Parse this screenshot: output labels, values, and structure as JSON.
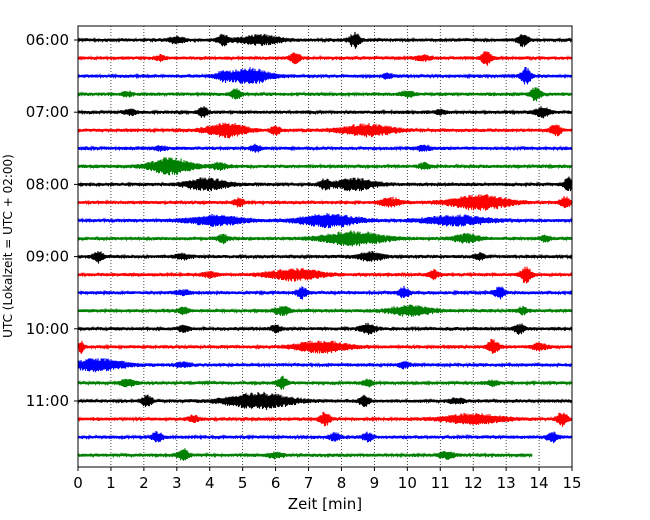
{
  "chart_data": {
    "type": "line",
    "title": "",
    "xlabel": "Zeit  [min]",
    "ylabel": "UTC (Lokalzeit = UTC + 02:00)",
    "xlim": [
      0,
      15
    ],
    "x_ticks": [
      "0",
      "1",
      "2",
      "3",
      "4",
      "5",
      "6",
      "7",
      "8",
      "9",
      "10",
      "11",
      "12",
      "13",
      "14",
      "15"
    ],
    "y_ticks": [
      "06:00",
      "07:00",
      "08:00",
      "09:00",
      "10:00",
      "11:00"
    ],
    "trace_interval_min": 15,
    "first_trace_time": "06:00",
    "grid": "vertical dotted at each minute",
    "trace_colors": [
      "#000000",
      "#ff0000",
      "#0000ff",
      "#008000"
    ],
    "series": [
      {
        "start": "06:00",
        "color": "#000000",
        "x_end": 15,
        "bursts": [
          [
            5.5,
            0.8,
            0.6
          ],
          [
            8.4,
            0.2,
            0.9
          ],
          [
            13.5,
            0.2,
            0.7
          ],
          [
            4.4,
            0.2,
            0.6
          ],
          [
            3,
            0.3,
            0.4
          ]
        ]
      },
      {
        "start": "06:15",
        "color": "#ff0000",
        "x_end": 15,
        "bursts": [
          [
            6.6,
            0.2,
            0.6
          ],
          [
            12.4,
            0.2,
            0.8
          ],
          [
            2.5,
            0.2,
            0.3
          ],
          [
            10.5,
            0.3,
            0.3
          ]
        ]
      },
      {
        "start": "06:30",
        "color": "#0000ff",
        "x_end": 15,
        "bursts": [
          [
            5.2,
            0.8,
            0.9
          ],
          [
            13.6,
            0.2,
            1.0
          ],
          [
            4.4,
            0.3,
            0.4
          ],
          [
            9.4,
            0.2,
            0.3
          ]
        ]
      },
      {
        "start": "06:45",
        "color": "#008000",
        "x_end": 15,
        "bursts": [
          [
            4.8,
            0.2,
            0.6
          ],
          [
            13.9,
            0.2,
            0.8
          ],
          [
            1.5,
            0.2,
            0.3
          ],
          [
            10,
            0.3,
            0.3
          ]
        ]
      },
      {
        "start": "07:00",
        "color": "#000000",
        "x_end": 15,
        "bursts": [
          [
            3.8,
            0.2,
            0.6
          ],
          [
            14.1,
            0.3,
            0.6
          ],
          [
            1.6,
            0.2,
            0.4
          ],
          [
            11,
            0.2,
            0.3
          ]
        ]
      },
      {
        "start": "07:15",
        "color": "#ff0000",
        "x_end": 15,
        "bursts": [
          [
            4.5,
            0.8,
            0.8
          ],
          [
            8.8,
            1.0,
            0.7
          ],
          [
            6,
            0.2,
            0.5
          ],
          [
            14.5,
            0.2,
            0.7
          ]
        ]
      },
      {
        "start": "07:30",
        "color": "#0000ff",
        "x_end": 15,
        "bursts": [
          [
            5.4,
            0.2,
            0.4
          ],
          [
            10.5,
            0.3,
            0.3
          ],
          [
            2.5,
            0.2,
            0.3
          ]
        ]
      },
      {
        "start": "07:45",
        "color": "#008000",
        "x_end": 15,
        "bursts": [
          [
            2.8,
            0.8,
            1.0
          ],
          [
            4.3,
            0.3,
            0.4
          ],
          [
            10.5,
            0.2,
            0.4
          ]
        ]
      },
      {
        "start": "08:00",
        "color": "#000000",
        "x_end": 15,
        "bursts": [
          [
            3.9,
            0.8,
            0.7
          ],
          [
            8.4,
            0.8,
            0.7
          ],
          [
            14.9,
            0.2,
            0.8
          ],
          [
            7.5,
            0.2,
            0.5
          ]
        ]
      },
      {
        "start": "08:15",
        "color": "#ff0000",
        "x_end": 15,
        "bursts": [
          [
            12.2,
            1.1,
            0.9
          ],
          [
            9.5,
            0.4,
            0.5
          ],
          [
            4.9,
            0.2,
            0.5
          ],
          [
            14.8,
            0.2,
            0.6
          ]
        ]
      },
      {
        "start": "08:30",
        "color": "#0000ff",
        "x_end": 15,
        "bursts": [
          [
            4.2,
            1.0,
            0.6
          ],
          [
            7.6,
            1.1,
            0.8
          ],
          [
            11.5,
            1.2,
            0.6
          ]
        ]
      },
      {
        "start": "08:45",
        "color": "#008000",
        "x_end": 15,
        "bursts": [
          [
            8.4,
            1.2,
            0.8
          ],
          [
            4.4,
            0.2,
            0.5
          ],
          [
            11.8,
            0.5,
            0.5
          ],
          [
            14.2,
            0.2,
            0.4
          ]
        ]
      },
      {
        "start": "09:00",
        "color": "#000000",
        "x_end": 15,
        "bursts": [
          [
            0.6,
            0.2,
            0.7
          ],
          [
            8.9,
            0.5,
            0.5
          ],
          [
            12.2,
            0.2,
            0.4
          ],
          [
            3.2,
            0.3,
            0.3
          ]
        ]
      },
      {
        "start": "09:15",
        "color": "#ff0000",
        "x_end": 15,
        "bursts": [
          [
            6.6,
            1.0,
            0.7
          ],
          [
            13.6,
            0.2,
            1.0
          ],
          [
            10.8,
            0.2,
            0.5
          ],
          [
            4,
            0.3,
            0.3
          ]
        ]
      },
      {
        "start": "09:30",
        "color": "#0000ff",
        "x_end": 15,
        "bursts": [
          [
            6.8,
            0.2,
            0.7
          ],
          [
            9.9,
            0.2,
            0.7
          ],
          [
            12.8,
            0.2,
            0.7
          ],
          [
            3.2,
            0.3,
            0.3
          ]
        ]
      },
      {
        "start": "09:45",
        "color": "#008000",
        "x_end": 15,
        "bursts": [
          [
            10.1,
            0.8,
            0.6
          ],
          [
            6.2,
            0.3,
            0.5
          ],
          [
            3.2,
            0.2,
            0.4
          ],
          [
            13.5,
            0.2,
            0.4
          ]
        ]
      },
      {
        "start": "10:00",
        "color": "#000000",
        "x_end": 15,
        "bursts": [
          [
            8.8,
            0.3,
            0.6
          ],
          [
            13.4,
            0.2,
            0.6
          ],
          [
            3.2,
            0.2,
            0.4
          ],
          [
            6,
            0.2,
            0.4
          ]
        ]
      },
      {
        "start": "10:15",
        "color": "#ff0000",
        "x_end": 15,
        "bursts": [
          [
            7.4,
            1.0,
            0.7
          ],
          [
            12.6,
            0.2,
            0.9
          ],
          [
            0.1,
            0.1,
            0.7
          ],
          [
            14,
            0.3,
            0.4
          ]
        ]
      },
      {
        "start": "10:30",
        "color": "#0000ff",
        "x_end": 15,
        "bursts": [
          [
            0.6,
            1.0,
            0.7
          ],
          [
            3.2,
            0.3,
            0.3
          ],
          [
            9.9,
            0.2,
            0.4
          ]
        ]
      },
      {
        "start": "10:45",
        "color": "#008000",
        "x_end": 15,
        "bursts": [
          [
            6.2,
            0.2,
            0.7
          ],
          [
            1.5,
            0.3,
            0.4
          ],
          [
            8.8,
            0.2,
            0.4
          ],
          [
            12.6,
            0.2,
            0.3
          ]
        ]
      },
      {
        "start": "11:00",
        "color": "#000000",
        "x_end": 15,
        "bursts": [
          [
            5.5,
            1.2,
            1.0
          ],
          [
            2.1,
            0.2,
            0.7
          ],
          [
            8.7,
            0.2,
            0.6
          ],
          [
            11.5,
            0.3,
            0.3
          ]
        ]
      },
      {
        "start": "11:15",
        "color": "#ff0000",
        "x_end": 15,
        "bursts": [
          [
            12,
            1.1,
            0.6
          ],
          [
            7.5,
            0.2,
            0.8
          ],
          [
            14.7,
            0.2,
            0.8
          ],
          [
            3.5,
            0.2,
            0.4
          ]
        ]
      },
      {
        "start": "11:30",
        "color": "#0000ff",
        "x_end": 15,
        "bursts": [
          [
            2.4,
            0.2,
            0.6
          ],
          [
            14.4,
            0.2,
            0.6
          ],
          [
            7.8,
            0.2,
            0.5
          ],
          [
            8.8,
            0.2,
            0.5
          ]
        ]
      },
      {
        "start": "11:45",
        "color": "#008000",
        "x_end": 13.8,
        "bursts": [
          [
            3.2,
            0.2,
            0.7
          ],
          [
            11.2,
            0.3,
            0.4
          ],
          [
            6,
            0.3,
            0.3
          ]
        ]
      }
    ]
  }
}
